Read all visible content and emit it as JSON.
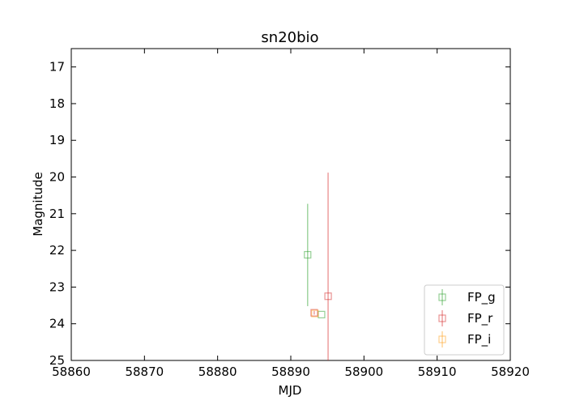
{
  "chart_data": {
    "type": "scatter",
    "title": "sn20bio",
    "xlabel": "MJD",
    "ylabel": "Magnitude",
    "xlim": [
      58860,
      58920
    ],
    "ylim": [
      25,
      16.5
    ],
    "y_inverted": true,
    "x_ticks": [
      58860,
      58870,
      58880,
      58890,
      58900,
      58910,
      58920
    ],
    "y_ticks": [
      17,
      18,
      19,
      20,
      21,
      22,
      23,
      24,
      25
    ],
    "x_tick_labels": [
      "58860",
      "58870",
      "58880",
      "58890",
      "58900",
      "58910",
      "58920"
    ],
    "y_tick_labels": [
      "17",
      "18",
      "19",
      "20",
      "21",
      "22",
      "23",
      "24",
      "25"
    ],
    "grid": false,
    "legend_position": "lower-right",
    "marker": "open-square",
    "series": [
      {
        "name": "FP_g",
        "color": "#2ca02c",
        "points": [
          {
            "x": 58892.3,
            "y": 22.12,
            "yerr_low": 20.73,
            "yerr_high": 23.52
          },
          {
            "x": 58894.2,
            "y": 23.75,
            "yerr_low": 23.75,
            "yerr_high": 23.75
          }
        ]
      },
      {
        "name": "FP_r",
        "color": "#d62728",
        "points": [
          {
            "x": 58893.2,
            "y": 23.7,
            "yerr_low": 23.65,
            "yerr_high": 23.75
          },
          {
            "x": 58895.1,
            "y": 23.25,
            "yerr_low": 19.88,
            "yerr_high": 25.0
          }
        ]
      },
      {
        "name": "FP_i",
        "color": "#ff9f1c",
        "points": [
          {
            "x": 58893.3,
            "y": 23.72,
            "yerr_low": 23.72,
            "yerr_high": 23.72
          }
        ]
      }
    ]
  }
}
